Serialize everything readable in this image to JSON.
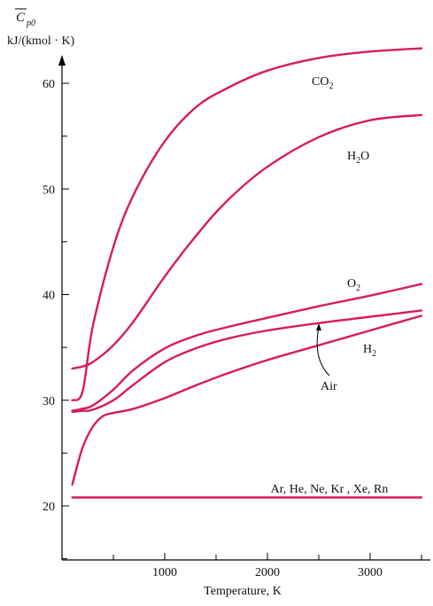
{
  "chart_data": {
    "type": "line",
    "ylabel_symbol": "C",
    "ylabel_subscript": "p0",
    "ylabel_units": "kJ/(kmol · K)",
    "xlabel": "Temperature, K",
    "xlim": [
      0,
      3500
    ],
    "ylim": [
      15,
      65
    ],
    "x_ticks": [
      1000,
      2000,
      3000
    ],
    "y_ticks": [
      20,
      30,
      40,
      50,
      60
    ],
    "grid": false,
    "line_color": "#d81b5a",
    "series": [
      {
        "name": "CO",
        "name_sub": "2",
        "x": [
          100,
          200,
          300,
          500,
          700,
          1000,
          1300,
          1600,
          2000,
          2500,
          3000,
          3500
        ],
        "y": [
          30.0,
          30.8,
          37.0,
          44.5,
          49.5,
          54.5,
          57.7,
          59.5,
          61.2,
          62.4,
          63.0,
          63.3
        ]
      },
      {
        "name": "H",
        "name_post": "O",
        "name_sub": "2",
        "x": [
          100,
          200,
          300,
          500,
          700,
          1000,
          1300,
          1600,
          2000,
          2500,
          3000,
          3500
        ],
        "y": [
          33.0,
          33.2,
          33.6,
          35.2,
          37.5,
          41.7,
          45.5,
          48.8,
          52.1,
          54.9,
          56.5,
          57.0
        ]
      },
      {
        "name": "O",
        "name_sub": "2",
        "x": [
          100,
          200,
          300,
          500,
          700,
          1000,
          1300,
          1600,
          2000,
          2500,
          3000,
          3500
        ],
        "y": [
          29.0,
          29.2,
          29.5,
          31.0,
          32.9,
          34.9,
          36.1,
          36.9,
          37.8,
          38.9,
          39.9,
          41.0
        ]
      },
      {
        "name": "Air",
        "x": [
          100,
          200,
          300,
          500,
          700,
          1000,
          1300,
          1600,
          2000,
          2500,
          3000,
          3500
        ],
        "y": [
          28.9,
          29.0,
          29.1,
          30.0,
          31.5,
          33.6,
          34.9,
          35.8,
          36.6,
          37.3,
          37.9,
          38.5
        ]
      },
      {
        "name": "H",
        "name_sub": "2",
        "x": [
          100,
          200,
          300,
          400,
          500,
          700,
          1000,
          1300,
          1600,
          2000,
          2500,
          3000,
          3500
        ],
        "y": [
          22.0,
          25.5,
          27.5,
          28.5,
          28.8,
          29.2,
          30.2,
          31.4,
          32.5,
          33.8,
          35.2,
          36.6,
          38.0
        ]
      },
      {
        "name": "Ar, He, Ne, Kr , Xe, Rn",
        "x": [
          100,
          3500
        ],
        "y": [
          20.8,
          20.8
        ]
      }
    ]
  }
}
